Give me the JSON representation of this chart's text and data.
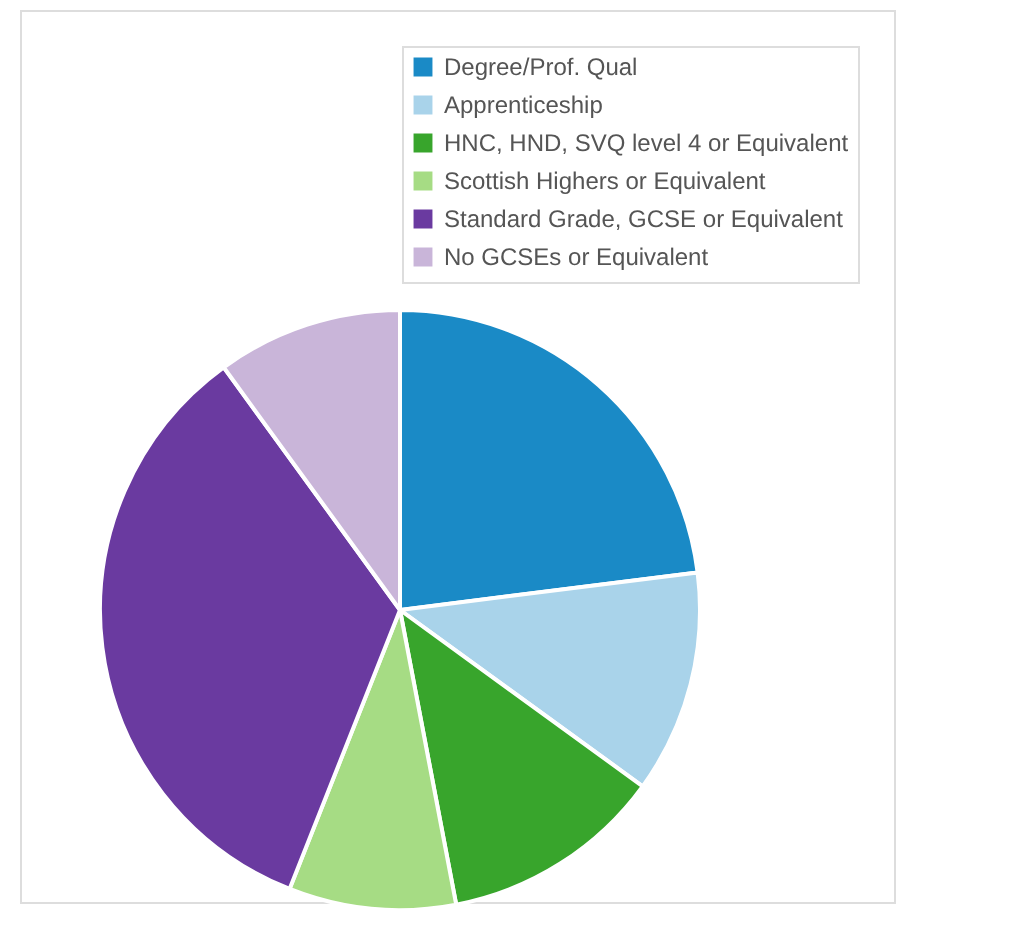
{
  "chart_data": {
    "type": "pie",
    "categories": [
      "Degree/Prof. Qual",
      "Apprenticeship",
      "HNC, HND, SVQ level 4 or Equivalent",
      "Scottish Highers or Equivalent",
      "Standard Grade, GCSE or Equivalent",
      "No GCSEs or Equivalent"
    ],
    "values": [
      23,
      12,
      12,
      9,
      34,
      10
    ],
    "colors": [
      "#1a8ac6",
      "#a9d3ea",
      "#38a52c",
      "#a6dc84",
      "#6a3aa0",
      "#c9b5d9"
    ],
    "legend": "top right"
  }
}
